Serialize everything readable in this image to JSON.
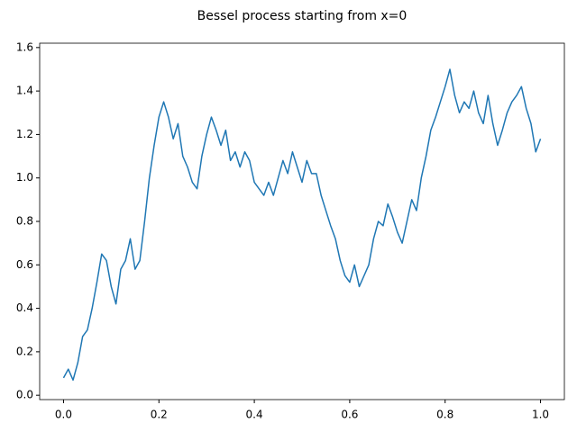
{
  "chart_data": {
    "type": "line",
    "title": "Bessel process starting from x=0",
    "x": [
      0,
      0.01,
      0.02,
      0.03,
      0.04,
      0.05,
      0.06,
      0.07,
      0.08,
      0.09,
      0.1,
      0.11,
      0.12,
      0.13,
      0.14,
      0.15,
      0.16,
      0.17,
      0.18,
      0.19,
      0.2,
      0.21,
      0.22,
      0.23,
      0.24,
      0.25,
      0.26,
      0.27,
      0.28,
      0.29,
      0.3,
      0.31,
      0.32,
      0.33,
      0.34,
      0.35,
      0.36,
      0.37,
      0.38,
      0.39,
      0.4,
      0.41,
      0.42,
      0.43,
      0.44,
      0.45,
      0.46,
      0.47,
      0.48,
      0.49,
      0.5,
      0.51,
      0.52,
      0.53,
      0.54,
      0.55,
      0.56,
      0.57,
      0.58,
      0.59,
      0.6,
      0.61,
      0.62,
      0.63,
      0.64,
      0.65,
      0.66,
      0.67,
      0.68,
      0.69,
      0.7,
      0.71,
      0.72,
      0.73,
      0.74,
      0.75,
      0.76,
      0.77,
      0.78,
      0.79,
      0.8,
      0.81,
      0.82,
      0.83,
      0.84,
      0.85,
      0.86,
      0.87,
      0.88,
      0.89,
      0.9,
      0.91,
      0.92,
      0.93,
      0.94,
      0.95,
      0.96,
      0.97,
      0.98,
      0.99,
      1.0
    ],
    "series": [
      {
        "color": "#1f77b4",
        "values": [
          0.08,
          0.12,
          0.07,
          0.15,
          0.27,
          0.3,
          0.4,
          0.52,
          0.65,
          0.62,
          0.5,
          0.42,
          0.58,
          0.62,
          0.72,
          0.58,
          0.62,
          0.8,
          1.0,
          1.15,
          1.28,
          1.35,
          1.28,
          1.18,
          1.25,
          1.1,
          1.05,
          0.98,
          0.95,
          1.1,
          1.2,
          1.28,
          1.22,
          1.15,
          1.22,
          1.08,
          1.12,
          1.05,
          1.12,
          1.08,
          0.98,
          0.95,
          0.92,
          0.98,
          0.92,
          1.0,
          1.08,
          1.02,
          1.12,
          1.05,
          0.98,
          1.08,
          1.02,
          1.02,
          0.92,
          0.85,
          0.78,
          0.72,
          0.62,
          0.55,
          0.52,
          0.6,
          0.5,
          0.55,
          0.6,
          0.72,
          0.8,
          0.78,
          0.88,
          0.82,
          0.75,
          0.7,
          0.8,
          0.9,
          0.85,
          1.0,
          1.1,
          1.22,
          1.28,
          1.35,
          1.42,
          1.5,
          1.38,
          1.3,
          1.35,
          1.32,
          1.4,
          1.3,
          1.25,
          1.38,
          1.25,
          1.15,
          1.22,
          1.3,
          1.35,
          1.38,
          1.42,
          1.32,
          1.25,
          1.12,
          1.18
        ]
      }
    ],
    "xlim": [
      -0.05,
      1.05
    ],
    "xticks": [
      {
        "value": 0,
        "label": "0.0"
      },
      {
        "value": 0.2,
        "label": "0.2"
      },
      {
        "value": 0.4,
        "label": "0.4"
      },
      {
        "value": 0.6,
        "label": "0.6"
      },
      {
        "value": 0.8,
        "label": "0.8"
      },
      {
        "value": 1,
        "label": "1.0"
      }
    ],
    "ylim": [
      -0.02,
      1.62
    ],
    "yticks": [
      {
        "value": 0,
        "label": "0.0"
      },
      {
        "value": 0.2,
        "label": "0.2"
      },
      {
        "value": 0.4,
        "label": "0.4"
      },
      {
        "value": 0.6,
        "label": "0.6"
      },
      {
        "value": 0.8,
        "label": "0.8"
      },
      {
        "value": 1,
        "label": "1.0"
      },
      {
        "value": 1.2,
        "label": "1.2"
      },
      {
        "value": 1.4,
        "label": "1.4"
      },
      {
        "value": 1.6,
        "label": "1.6"
      }
    ],
    "grid": false
  }
}
